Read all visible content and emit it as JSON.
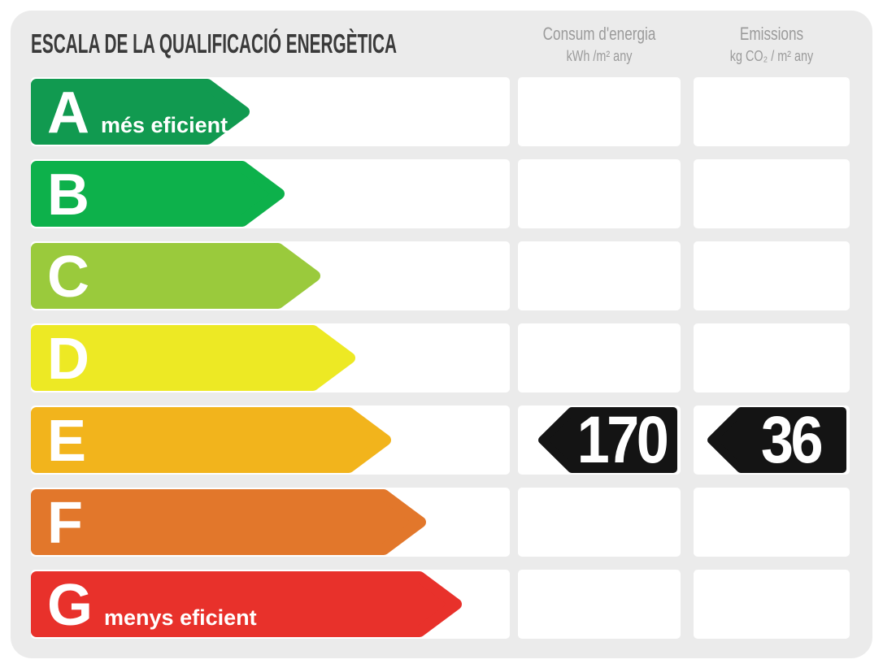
{
  "title": "ESCALA DE LA QUALIFICACIÓ ENERGÈTICA",
  "columns": {
    "consum": {
      "label": "Consum d'energia",
      "unit": "kWh /m²  any"
    },
    "emissions": {
      "label": "Emissions",
      "unit": "kg CO₂  / m²  any"
    }
  },
  "ratings": [
    {
      "grade": "A",
      "note": "més eficient",
      "color": "#119A50"
    },
    {
      "grade": "B",
      "note": "",
      "color": "#0DB14B"
    },
    {
      "grade": "C",
      "note": "",
      "color": "#9ACA3C"
    },
    {
      "grade": "D",
      "note": "",
      "color": "#EDE924"
    },
    {
      "grade": "E",
      "note": "",
      "color": "#F2B41C"
    },
    {
      "grade": "F",
      "note": "",
      "color": "#E2772B"
    },
    {
      "grade": "G",
      "note": "menys eficient",
      "color": "#E8312B"
    }
  ],
  "result": {
    "grade": "E",
    "consum_value": "170",
    "emissions_value": "36",
    "marker_color": "#141414"
  },
  "panel_bg": "#EBEBEB",
  "chart_data": {
    "type": "table",
    "title": "ESCALA DE LA QUALIFICACIÓ ENERGÈTICA",
    "categories": [
      "A",
      "B",
      "C",
      "D",
      "E",
      "F",
      "G"
    ],
    "category_notes": [
      "més eficient",
      "",
      "",
      "",
      "",
      "",
      "menys eficient"
    ],
    "series": [
      {
        "name": "Consum d'energia (kWh /m² any)",
        "values": [
          null,
          null,
          null,
          null,
          170,
          null,
          null
        ]
      },
      {
        "name": "Emissions (kg CO₂ / m² any)",
        "values": [
          null,
          null,
          null,
          null,
          36,
          null,
          null
        ]
      }
    ],
    "selected_rating": "E",
    "colors": [
      "#119A50",
      "#0DB14B",
      "#9ACA3C",
      "#EDE924",
      "#F2B41C",
      "#E2772B",
      "#E8312B"
    ],
    "legend_position": "none",
    "grid": false
  }
}
